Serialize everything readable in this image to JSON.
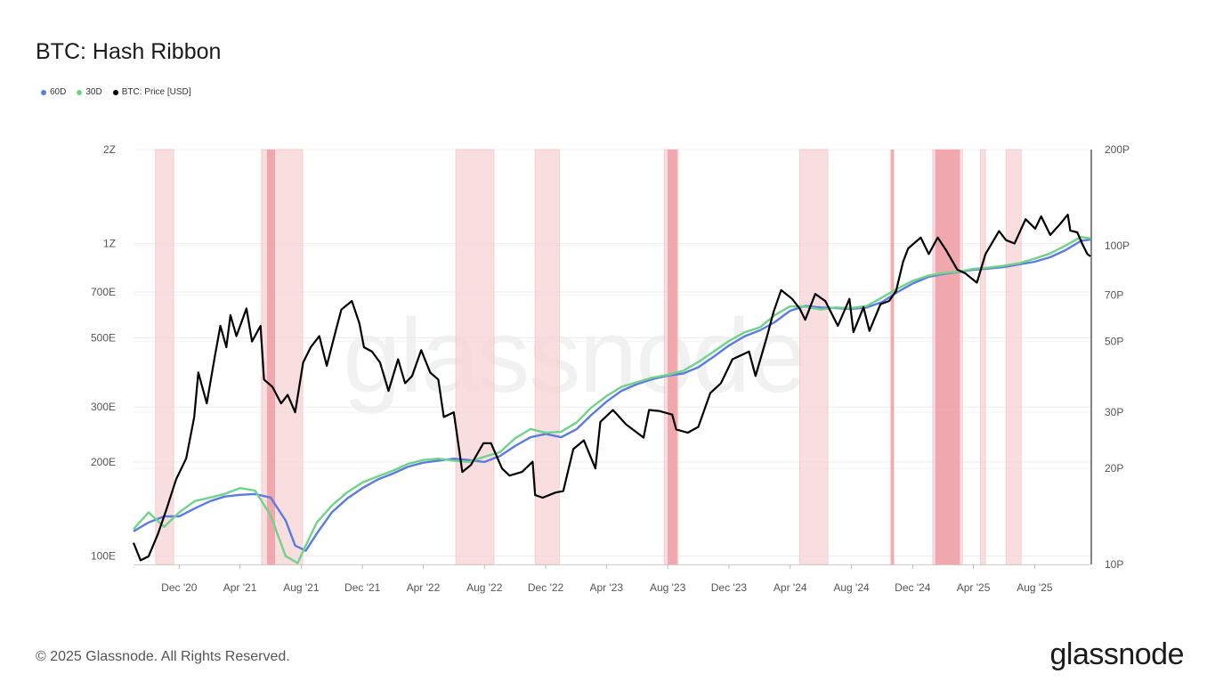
{
  "title": "BTC: Hash Ribbon",
  "legend": [
    {
      "label": "60D",
      "color": "#5b7be0"
    },
    {
      "label": "30D",
      "color": "#6fd38a"
    },
    {
      "label": "BTC: Price [USD]",
      "color": "#000000"
    }
  ],
  "footer": "© 2025 Glassnode. All Rights Reserved.",
  "brand": "glassnode",
  "watermark": "glassnode",
  "colors": {
    "band": "#f7d4d6",
    "band_strong": "#ee9ea3",
    "hash60": "#5b7be0",
    "hash30": "#6fd38a",
    "price": "#000000"
  },
  "chart_data": {
    "type": "line",
    "x_ticks": [
      "Dec '20",
      "Apr '21",
      "Aug '21",
      "Dec '21",
      "Apr '22",
      "Aug '22",
      "Dec '22",
      "Apr '23",
      "Aug '23",
      "Dec '23",
      "Apr '24",
      "Aug '24",
      "Dec '24",
      "Apr '25",
      "Aug '25"
    ],
    "xlim": [
      "2020-09-01",
      "2025-11-20"
    ],
    "y_left": {
      "scale": "log",
      "ticks": [
        "100E",
        "200E",
        "300E",
        "500E",
        "700E",
        "1Z",
        "2Z"
      ],
      "tick_values": [
        100,
        200,
        300,
        500,
        700,
        1000,
        2000
      ],
      "range": [
        94,
        2000
      ],
      "unit": "EH/s"
    },
    "y_right": {
      "scale": "log",
      "ticks": [
        "10P",
        "20P",
        "30P",
        "50P",
        "70P",
        "100P",
        "200P"
      ],
      "tick_values": [
        10000,
        20000,
        30000,
        50000,
        70000,
        100000,
        200000
      ],
      "range": [
        10000,
        200000
      ],
      "unit": "USD"
    },
    "capitulation_bands": [
      {
        "start": "2020-10-15",
        "end": "2020-11-20"
      },
      {
        "start": "2021-05-14",
        "end": "2021-08-04"
      },
      {
        "start": "2021-05-25",
        "end": "2021-06-10",
        "strong": true
      },
      {
        "start": "2022-06-05",
        "end": "2022-08-20"
      },
      {
        "start": "2022-11-10",
        "end": "2022-12-28"
      },
      {
        "start": "2023-07-25",
        "end": "2023-08-22"
      },
      {
        "start": "2023-08-01",
        "end": "2023-08-20",
        "strong": true
      },
      {
        "start": "2024-04-20",
        "end": "2024-06-15"
      },
      {
        "start": "2024-10-18",
        "end": "2024-10-25",
        "strong": true
      },
      {
        "start": "2025-01-10",
        "end": "2025-03-10"
      },
      {
        "start": "2025-01-15",
        "end": "2025-03-05",
        "strong": true
      },
      {
        "start": "2025-04-15",
        "end": "2025-04-25"
      },
      {
        "start": "2025-06-05",
        "end": "2025-07-05"
      }
    ],
    "series": [
      {
        "name": "60D",
        "axis": "left",
        "x": [
          "2020-09-01",
          "2020-10-01",
          "2020-11-01",
          "2020-12-01",
          "2021-01-01",
          "2021-02-01",
          "2021-03-01",
          "2021-04-01",
          "2021-05-01",
          "2021-06-01",
          "2021-07-01",
          "2021-07-20",
          "2021-08-10",
          "2021-09-01",
          "2021-10-01",
          "2021-11-01",
          "2021-12-01",
          "2022-01-01",
          "2022-02-01",
          "2022-03-01",
          "2022-04-01",
          "2022-05-01",
          "2022-06-01",
          "2022-07-01",
          "2022-08-01",
          "2022-09-01",
          "2022-10-01",
          "2022-11-01",
          "2022-12-01",
          "2023-01-01",
          "2023-02-01",
          "2023-03-01",
          "2023-04-01",
          "2023-05-01",
          "2023-06-01",
          "2023-07-01",
          "2023-08-01",
          "2023-09-01",
          "2023-10-01",
          "2023-11-01",
          "2023-12-01",
          "2024-01-01",
          "2024-02-01",
          "2024-03-01",
          "2024-04-01",
          "2024-05-01",
          "2024-06-01",
          "2024-07-01",
          "2024-08-01",
          "2024-09-01",
          "2024-10-01",
          "2024-11-01",
          "2024-12-01",
          "2025-01-01",
          "2025-02-01",
          "2025-03-01",
          "2025-04-01",
          "2025-05-01",
          "2025-06-01",
          "2025-07-01",
          "2025-08-01",
          "2025-09-01",
          "2025-10-01",
          "2025-11-01",
          "2025-11-20"
        ],
        "values": [
          120,
          128,
          134,
          134,
          142,
          150,
          155,
          157,
          158,
          154,
          130,
          108,
          104,
          118,
          138,
          153,
          165,
          176,
          184,
          193,
          199,
          202,
          205,
          203,
          200,
          209,
          225,
          240,
          246,
          240,
          255,
          282,
          312,
          338,
          355,
          368,
          378,
          384,
          402,
          435,
          472,
          505,
          528,
          560,
          610,
          632,
          625,
          622,
          618,
          625,
          650,
          700,
          745,
          782,
          800,
          810,
          825,
          832,
          842,
          858,
          875,
          905,
          952,
          1020,
          1030
        ]
      },
      {
        "name": "30D",
        "axis": "left",
        "x": [
          "2020-09-01",
          "2020-10-01",
          "2020-11-01",
          "2020-12-01",
          "2021-01-01",
          "2021-02-01",
          "2021-03-01",
          "2021-04-01",
          "2021-05-01",
          "2021-06-01",
          "2021-07-01",
          "2021-07-25",
          "2021-08-10",
          "2021-09-01",
          "2021-10-01",
          "2021-11-01",
          "2021-12-01",
          "2022-01-01",
          "2022-02-01",
          "2022-03-01",
          "2022-04-01",
          "2022-05-01",
          "2022-06-01",
          "2022-07-01",
          "2022-08-01",
          "2022-09-01",
          "2022-10-01",
          "2022-11-01",
          "2022-12-01",
          "2023-01-01",
          "2023-02-01",
          "2023-03-01",
          "2023-04-01",
          "2023-05-01",
          "2023-06-01",
          "2023-07-01",
          "2023-08-01",
          "2023-09-01",
          "2023-10-01",
          "2023-11-01",
          "2023-12-01",
          "2024-01-01",
          "2024-02-01",
          "2024-03-01",
          "2024-04-01",
          "2024-05-01",
          "2024-06-01",
          "2024-07-01",
          "2024-08-01",
          "2024-09-01",
          "2024-10-01",
          "2024-11-01",
          "2024-12-01",
          "2025-01-01",
          "2025-02-01",
          "2025-03-01",
          "2025-04-01",
          "2025-05-01",
          "2025-06-01",
          "2025-07-01",
          "2025-08-01",
          "2025-09-01",
          "2025-10-01",
          "2025-11-01",
          "2025-11-20"
        ],
        "values": [
          122,
          138,
          124,
          138,
          150,
          154,
          158,
          165,
          162,
          135,
          100,
          95,
          108,
          128,
          145,
          160,
          172,
          180,
          188,
          197,
          203,
          205,
          202,
          200,
          208,
          215,
          238,
          255,
          248,
          250,
          268,
          298,
          325,
          348,
          360,
          372,
          380,
          392,
          418,
          452,
          488,
          520,
          540,
          590,
          630,
          628,
          615,
          625,
          622,
          632,
          672,
          718,
          760,
          790,
          805,
          812,
          830,
          838,
          850,
          865,
          895,
          930,
          985,
          1050,
          1040
        ]
      },
      {
        "name": "BTC: Price [USD]",
        "axis": "right",
        "x": [
          "2020-09-01",
          "2020-09-15",
          "2020-10-01",
          "2020-10-20",
          "2020-11-05",
          "2020-11-25",
          "2020-12-15",
          "2020-12-31",
          "2021-01-08",
          "2021-01-25",
          "2021-02-10",
          "2021-02-21",
          "2021-03-05",
          "2021-03-13",
          "2021-03-25",
          "2021-04-14",
          "2021-04-25",
          "2021-05-12",
          "2021-05-19",
          "2021-06-05",
          "2021-06-22",
          "2021-07-05",
          "2021-07-20",
          "2021-08-05",
          "2021-08-20",
          "2021-09-06",
          "2021-09-21",
          "2021-10-10",
          "2021-10-20",
          "2021-11-10",
          "2021-11-25",
          "2021-12-04",
          "2021-12-20",
          "2022-01-05",
          "2022-01-22",
          "2022-02-10",
          "2022-02-24",
          "2022-03-10",
          "2022-03-28",
          "2022-04-15",
          "2022-05-01",
          "2022-05-12",
          "2022-06-01",
          "2022-06-18",
          "2022-07-05",
          "2022-07-30",
          "2022-08-14",
          "2022-09-05",
          "2022-09-20",
          "2022-10-15",
          "2022-11-05",
          "2022-11-10",
          "2022-11-25",
          "2022-12-20",
          "2023-01-05",
          "2023-01-25",
          "2023-02-15",
          "2023-03-10",
          "2023-03-20",
          "2023-04-14",
          "2023-05-10",
          "2023-06-14",
          "2023-06-25",
          "2023-07-15",
          "2023-08-10",
          "2023-08-18",
          "2023-09-10",
          "2023-10-01",
          "2023-10-25",
          "2023-11-15",
          "2023-12-08",
          "2024-01-10",
          "2024-01-23",
          "2024-02-15",
          "2024-02-28",
          "2024-03-14",
          "2024-04-05",
          "2024-04-20",
          "2024-05-01",
          "2024-05-21",
          "2024-06-10",
          "2024-07-05",
          "2024-07-28",
          "2024-08-05",
          "2024-08-25",
          "2024-09-06",
          "2024-09-28",
          "2024-10-15",
          "2024-10-29",
          "2024-11-12",
          "2024-11-22",
          "2024-12-17",
          "2025-01-02",
          "2025-01-20",
          "2025-02-05",
          "2025-02-28",
          "2025-03-15",
          "2025-04-08",
          "2025-04-25",
          "2025-05-22",
          "2025-06-05",
          "2025-06-22",
          "2025-07-14",
          "2025-08-02",
          "2025-08-14",
          "2025-09-01",
          "2025-09-20",
          "2025-10-06",
          "2025-10-11",
          "2025-10-25",
          "2025-11-04",
          "2025-11-14",
          "2025-11-20"
        ],
        "values": [
          11700,
          10300,
          10600,
          12500,
          14800,
          18500,
          21500,
          29000,
          40000,
          32000,
          45000,
          56000,
          48000,
          60500,
          52000,
          63500,
          50000,
          56000,
          38000,
          36000,
          32000,
          34000,
          30000,
          43000,
          48000,
          52000,
          42000,
          55000,
          63000,
          67000,
          57000,
          48000,
          46500,
          43000,
          35000,
          44000,
          37000,
          39000,
          47000,
          40000,
          38000,
          29000,
          30000,
          19500,
          20500,
          24000,
          24000,
          20000,
          19000,
          19500,
          21000,
          16500,
          16200,
          16800,
          17000,
          23000,
          24500,
          20000,
          28000,
          30500,
          27500,
          25000,
          30500,
          30300,
          29500,
          26500,
          25900,
          27000,
          34500,
          37000,
          44000,
          46500,
          39000,
          52000,
          62000,
          72500,
          68000,
          63500,
          58500,
          70500,
          67000,
          56000,
          68000,
          53500,
          64000,
          54000,
          65500,
          67000,
          72000,
          89000,
          98000,
          106000,
          94000,
          106000,
          97000,
          84000,
          82000,
          76500,
          94000,
          111000,
          104000,
          101500,
          121000,
          113000,
          123500,
          108000,
          116500,
          125000,
          111500,
          110000,
          101000,
          94000,
          92500
        ]
      }
    ]
  }
}
